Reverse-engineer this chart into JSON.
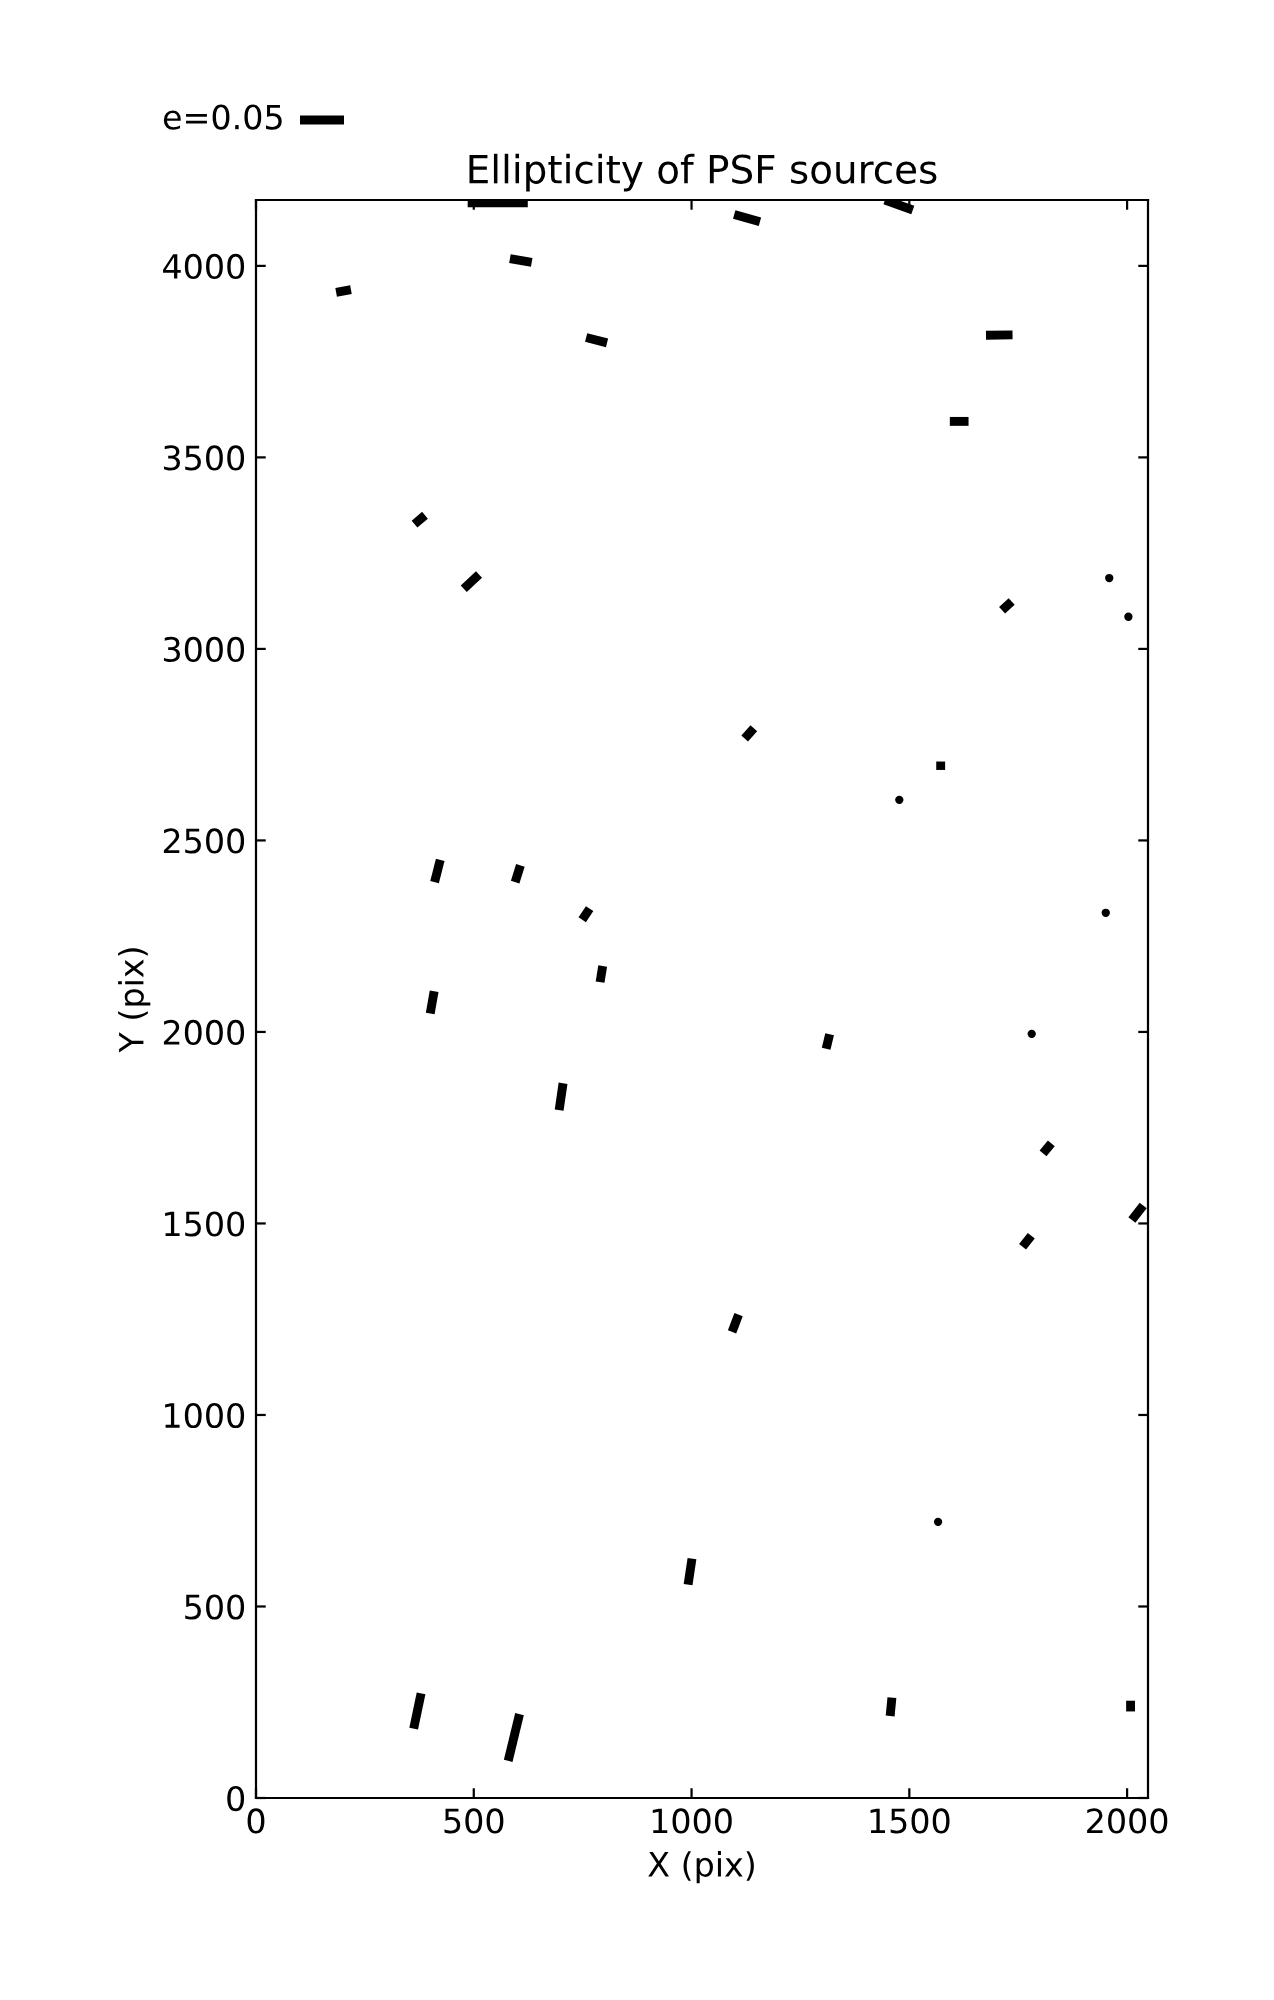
{
  "chart_data": {
    "type": "line",
    "title": "Ellipticity of PSF sources",
    "xlabel": "X (pix)",
    "ylabel": "Y (pix)",
    "xlim": [
      0,
      2048
    ],
    "ylim": [
      0,
      4172
    ],
    "xticks": [
      0,
      500,
      1000,
      1500,
      2000
    ],
    "yticks": [
      0,
      500,
      1000,
      1500,
      2000,
      2500,
      3000,
      3500,
      4000
    ],
    "grid": false,
    "annotations": [
      "e=0.05"
    ],
    "series": [
      {
        "color": "#000000",
        "x": [
          486,
          624
        ],
        "values": [
          4165,
          4165
        ]
      },
      {
        "color": "#000000",
        "x": [
          583,
          633
        ],
        "values": [
          4019,
          4009
        ]
      },
      {
        "color": "#000000",
        "x": [
          184,
          218
        ],
        "values": [
          3931,
          3938
        ]
      },
      {
        "color": "#000000",
        "x": [
          1098,
          1157
        ],
        "values": [
          4134,
          4115
        ]
      },
      {
        "color": "#000000",
        "x": [
          1444,
          1508
        ],
        "values": [
          4172,
          4146
        ]
      },
      {
        "color": "#000000",
        "x": [
          758,
          806
        ],
        "values": [
          3813,
          3799
        ]
      },
      {
        "color": "#000000",
        "x": [
          1676,
          1737
        ],
        "values": [
          3819,
          3820
        ]
      },
      {
        "color": "#000000",
        "x": [
          1593,
          1636
        ],
        "values": [
          3594,
          3594
        ]
      },
      {
        "color": "#000000",
        "x": [
          364,
          388
        ],
        "values": [
          3326,
          3349
        ]
      },
      {
        "color": "#000000",
        "x": [
          477,
          512
        ],
        "values": [
          3157,
          3194
        ]
      },
      {
        "color": "#000000",
        "x": [
          1713,
          1735
        ],
        "values": [
          3101,
          3124
        ]
      },
      {
        "color": "#000000",
        "x": [
          1122,
          1143
        ],
        "values": [
          2766,
          2793
        ]
      },
      {
        "color": "#000000",
        "x": [
          1572,
          1572
        ],
        "values": [
          2684,
          2706
        ]
      },
      {
        "color": "#000000",
        "x": [
          410,
          423
        ],
        "values": [
          2391,
          2449
        ]
      },
      {
        "color": "#000000",
        "x": [
          595,
          607
        ],
        "values": [
          2391,
          2435
        ]
      },
      {
        "color": "#000000",
        "x": [
          749,
          766
        ],
        "values": [
          2293,
          2322
        ]
      },
      {
        "color": "#000000",
        "x": [
          790,
          796
        ],
        "values": [
          2130,
          2172
        ]
      },
      {
        "color": "#000000",
        "x": [
          400,
          409
        ],
        "values": [
          2048,
          2106
        ]
      },
      {
        "color": "#000000",
        "x": [
          1309,
          1317
        ],
        "values": [
          1956,
          1994
        ]
      },
      {
        "color": "#000000",
        "x": [
          696,
          705
        ],
        "values": [
          1796,
          1866
        ]
      },
      {
        "color": "#000000",
        "x": [
          1807,
          1826
        ],
        "values": [
          1683,
          1709
        ]
      },
      {
        "color": "#000000",
        "x": [
          2011,
          2037
        ],
        "values": [
          1509,
          1547
        ]
      },
      {
        "color": "#000000",
        "x": [
          1760,
          1780
        ],
        "values": [
          1439,
          1468
        ]
      },
      {
        "color": "#000000",
        "x": [
          1093,
          1108
        ],
        "values": [
          1217,
          1262
        ]
      },
      {
        "color": "#000000",
        "x": [
          992,
          1001
        ],
        "values": [
          557,
          625
        ]
      },
      {
        "color": "#000000",
        "x": [
          362,
          379
        ],
        "values": [
          181,
          273
        ]
      },
      {
        "color": "#000000",
        "x": [
          579,
          605
        ],
        "values": [
          97,
          219
        ]
      },
      {
        "color": "#000000",
        "x": [
          1456,
          1460
        ],
        "values": [
          214,
          262
        ]
      },
      {
        "color": "#000000",
        "x": [
          2008,
          2008
        ],
        "values": [
          226,
          254
        ]
      },
      {
        "type": "scatter",
        "color": "#000000",
        "x": [
          1959,
          2003,
          1477,
          1951,
          1781,
          1566
        ],
        "values": [
          3185,
          3084,
          2606,
          2311,
          1995,
          721
        ]
      }
    ]
  }
}
